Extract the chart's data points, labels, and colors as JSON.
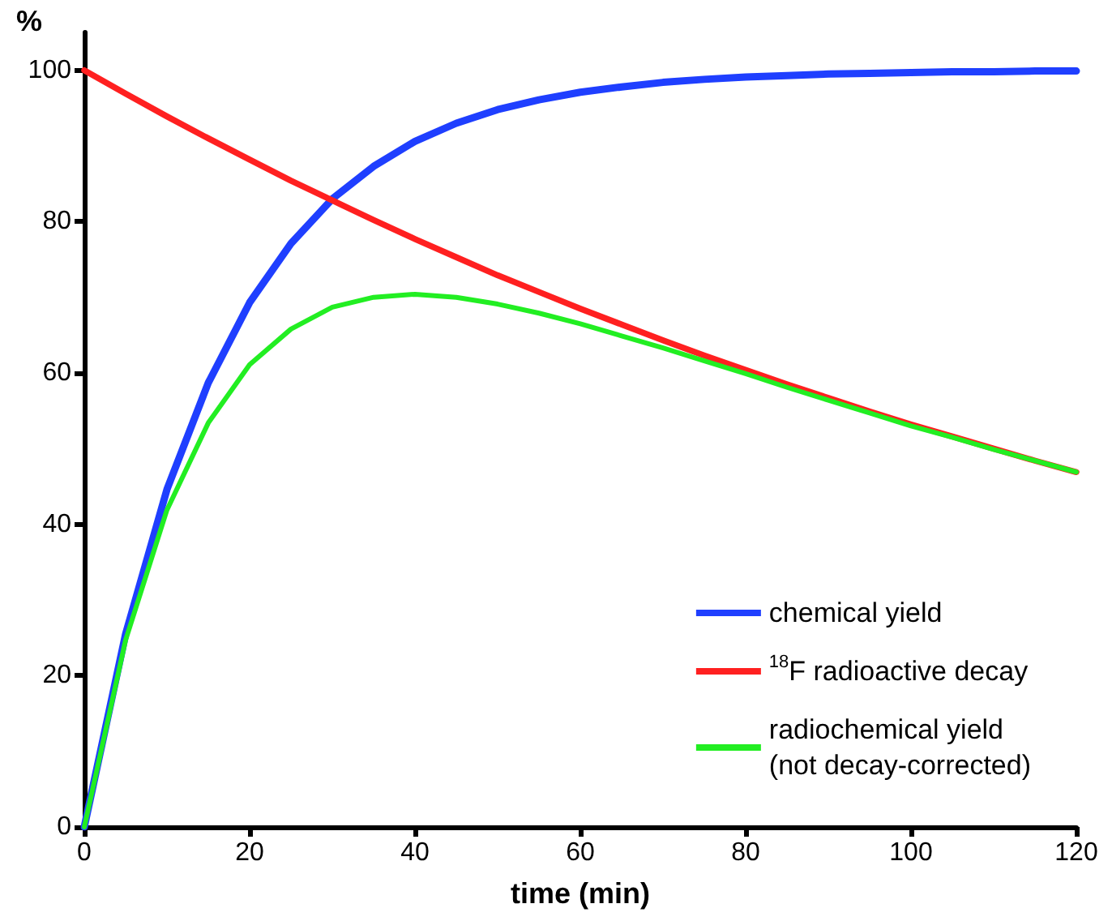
{
  "chart_data": {
    "type": "line",
    "ylabel": "%",
    "xlabel": "time (min)",
    "x": [
      0,
      5,
      10,
      15,
      20,
      25,
      30,
      35,
      40,
      45,
      50,
      55,
      60,
      65,
      70,
      75,
      80,
      85,
      90,
      95,
      100,
      105,
      110,
      115,
      120
    ],
    "series": [
      {
        "name": "chemical yield",
        "color": "#1f3fff",
        "values": [
          0,
          25.5,
          44.6,
          58.7,
          69.3,
          77.1,
          83.0,
          87.3,
          90.6,
          93.0,
          94.8,
          96.1,
          97.1,
          97.8,
          98.4,
          98.8,
          99.1,
          99.3,
          99.5,
          99.6,
          99.7,
          99.8,
          99.8,
          99.9,
          99.9
        ]
      },
      {
        "name": "$^{18}$F radioactive decay",
        "color": "#ff2020",
        "values": [
          100,
          96.9,
          93.9,
          91.0,
          88.2,
          85.4,
          82.8,
          80.2,
          77.7,
          75.3,
          72.9,
          70.7,
          68.5,
          66.4,
          64.3,
          62.3,
          60.4,
          58.5,
          56.7,
          54.9,
          53.2,
          51.6,
          50.0,
          48.4,
          46.9
        ]
      },
      {
        "name": "radiochemical yield\n(not decay-corrected)",
        "color": "#22ee22",
        "values": [
          0,
          24.7,
          41.9,
          53.4,
          61.1,
          65.8,
          68.7,
          70.0,
          70.4,
          70.0,
          69.1,
          67.9,
          66.5,
          64.9,
          63.3,
          61.6,
          59.9,
          58.1,
          56.4,
          54.7,
          53.0,
          51.5,
          49.9,
          48.4,
          46.9
        ]
      }
    ],
    "xlim": [
      0,
      120
    ],
    "xticks": [
      0,
      20,
      40,
      60,
      80,
      100,
      120
    ],
    "ylim": [
      0,
      105
    ],
    "yticks": [
      0,
      20,
      40,
      60,
      80,
      100
    ],
    "grid": false,
    "legend": "bottom right",
    "marker": "none",
    "line_style": "solid"
  }
}
